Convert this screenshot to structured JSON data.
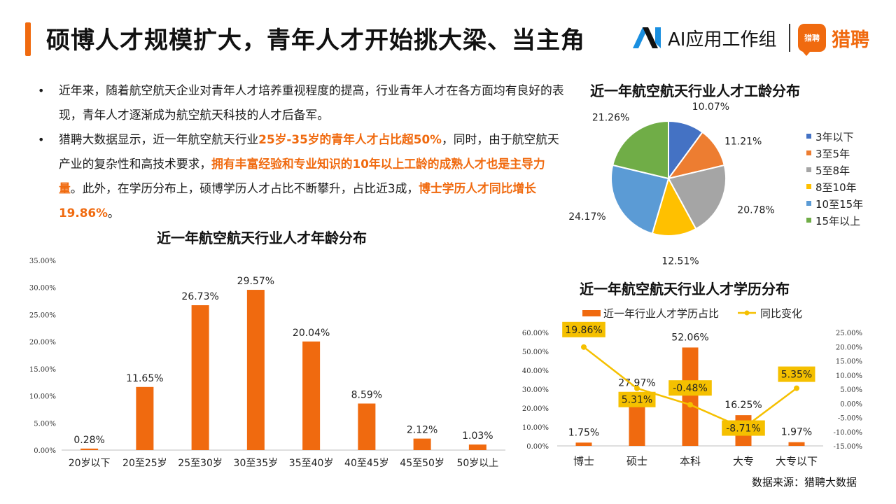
{
  "header": {
    "title": "硕博人才规模扩大，青年人才开始挑大梁、当主角",
    "brand_ai_text": "AI应用工作组",
    "brand_liepin_text": "猎聘",
    "brand_liepin_icon_text": "猎聘"
  },
  "bullets": [
    {
      "segments": [
        {
          "text": "近年来，随着航空航天企业对青年人才培养重视程度的提高，行业青年人才在各方面均有良好的表现，青年人才逐渐成为航空航天科技的人才后备军。",
          "highlight": false
        }
      ]
    },
    {
      "segments": [
        {
          "text": "猎聘大数据显示，近一年航空航天行业",
          "highlight": false
        },
        {
          "text": "25岁-35岁的青年人才占比超50%",
          "highlight": true
        },
        {
          "text": "，同时，由于航空航天产业的复杂性和高技术要求，",
          "highlight": false
        },
        {
          "text": "拥有丰富经验和专业知识的10年以上工龄的成熟人才也是主导力量",
          "highlight": true
        },
        {
          "text": "。此外，在学历分布上，硕博学历人才占比不断攀升，占比近3成，",
          "highlight": false
        },
        {
          "text": "博士学历人才同比增长19.86%",
          "highlight": true
        },
        {
          "text": "。",
          "highlight": false
        }
      ]
    }
  ],
  "source": "数据来源：猎聘大数据",
  "colors": {
    "accent": "#f06a0f",
    "line": "#f5c000"
  },
  "chart_data": [
    {
      "id": "age",
      "type": "bar",
      "title": "近一年航空航天行业人才年龄分布",
      "categories": [
        "20岁以下",
        "20至25岁",
        "25至30岁",
        "30至35岁",
        "35至40岁",
        "40至45岁",
        "45至50岁",
        "50岁以上"
      ],
      "values": [
        0.28,
        11.65,
        26.73,
        29.57,
        20.04,
        8.59,
        2.12,
        1.03
      ],
      "value_labels": [
        "0.28%",
        "11.65%",
        "26.73%",
        "29.57%",
        "20.04%",
        "8.59%",
        "2.12%",
        "1.03%"
      ],
      "yticks": [
        "0.00%",
        "5.00%",
        "10.00%",
        "15.00%",
        "20.00%",
        "25.00%",
        "30.00%",
        "35.00%"
      ],
      "ylim": [
        0,
        35
      ],
      "grid": false
    },
    {
      "id": "tenure",
      "type": "pie",
      "title": "近一年航空航天行业人才工龄分布",
      "labels": [
        "3年以下",
        "3至5年",
        "5至8年",
        "8至10年",
        "10至15年",
        "15年以上"
      ],
      "values": [
        10.07,
        11.21,
        20.78,
        12.51,
        24.17,
        21.26
      ],
      "value_labels": [
        "10.07%",
        "11.21%",
        "20.78%",
        "12.51%",
        "24.17%",
        "21.26%"
      ],
      "colors": [
        "#4472c4",
        "#ed7d31",
        "#a5a5a5",
        "#ffc000",
        "#5b9bd5",
        "#70ad47"
      ],
      "legend": "right"
    },
    {
      "id": "education",
      "type": "bar",
      "title": "近一年航空航天行业人才学历分布",
      "categories": [
        "博士",
        "硕士",
        "本科",
        "大专",
        "大专以下"
      ],
      "series": [
        {
          "name": "近一年行业人才学历占比",
          "type": "bar",
          "axis": "left",
          "values": [
            1.75,
            27.97,
            52.06,
            16.25,
            1.97
          ],
          "value_labels": [
            "1.75%",
            "27.97%",
            "52.06%",
            "16.25%",
            "1.97%"
          ]
        },
        {
          "name": "同比变化",
          "type": "line",
          "axis": "right",
          "values": [
            19.86,
            5.31,
            -0.48,
            -8.71,
            5.35
          ],
          "value_labels": [
            "19.86%",
            "5.31%",
            "-0.48%",
            "-8.71%",
            "5.35%"
          ]
        }
      ],
      "yticks_left": [
        "0.00%",
        "10.00%",
        "20.00%",
        "30.00%",
        "40.00%",
        "50.00%",
        "60.00%"
      ],
      "yticks_right": [
        "-15.00%",
        "-10.00%",
        "-5.00%",
        "0.00%",
        "5.00%",
        "10.00%",
        "15.00%",
        "20.00%",
        "25.00%"
      ],
      "ylim_left": [
        0,
        60
      ],
      "ylim_right": [
        -15,
        25
      ],
      "legend": "top"
    }
  ]
}
